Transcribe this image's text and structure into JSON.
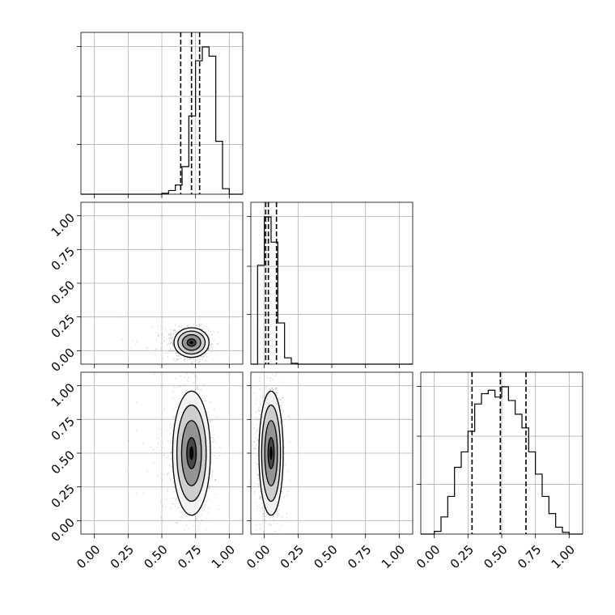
{
  "chart_data": {
    "type": "corner",
    "title": "",
    "parameters": [
      "",
      "",
      ""
    ],
    "axis_range": [
      -0.1,
      1.1
    ],
    "tick_values": [
      0.0,
      0.25,
      0.5,
      0.75,
      1.0
    ],
    "tick_labels": [
      "0.00",
      "0.25",
      "0.50",
      "0.75",
      "1.00"
    ],
    "grid": true,
    "colors": {
      "hist": "#000000",
      "contour": "#000000",
      "fill": "#808080",
      "points": "#000000"
    },
    "bin_edges": [
      -0.1,
      -0.05,
      0.0,
      0.05,
      0.1,
      0.15,
      0.2,
      0.25,
      0.3,
      0.35,
      0.4,
      0.45,
      0.5,
      0.55,
      0.6,
      0.65,
      0.7,
      0.75,
      0.8,
      0.85,
      0.9,
      0.95,
      1.0,
      1.05,
      1.1
    ],
    "histograms": [
      {
        "parameter_index": 0,
        "counts": [
          0,
          0,
          0,
          0,
          0,
          0,
          0,
          0,
          0,
          0,
          0,
          0,
          2,
          8,
          20,
          60,
          170,
          290,
          320,
          300,
          115,
          12,
          0,
          0
        ],
        "quantiles": [
          0.64,
          0.72,
          0.78
        ]
      },
      {
        "parameter_index": 1,
        "counts": [
          0,
          235,
          350,
          290,
          98,
          15,
          2,
          0,
          0,
          0,
          0,
          0,
          0,
          0,
          0,
          0,
          0,
          0,
          0,
          0,
          0,
          0,
          0,
          0
        ],
        "quantiles": [
          0.01,
          0.03,
          0.09
        ]
      },
      {
        "parameter_index": 2,
        "counts": [
          0,
          0,
          8,
          50,
          110,
          195,
          240,
          300,
          380,
          410,
          420,
          400,
          430,
          390,
          350,
          310,
          240,
          175,
          110,
          60,
          20,
          5,
          0,
          0
        ],
        "quantiles": [
          0.28,
          0.49,
          0.68
        ]
      }
    ],
    "scatter_2d": [
      {
        "x_param": 0,
        "y_param": 1,
        "center": [
          0.72,
          0.06
        ],
        "spread": [
          0.065,
          0.055
        ]
      },
      {
        "x_param": 0,
        "y_param": 2,
        "center": [
          0.72,
          0.5
        ],
        "spread": [
          0.07,
          0.23
        ]
      },
      {
        "x_param": 1,
        "y_param": 2,
        "center": [
          0.05,
          0.5
        ],
        "spread": [
          0.045,
          0.23
        ]
      }
    ]
  }
}
